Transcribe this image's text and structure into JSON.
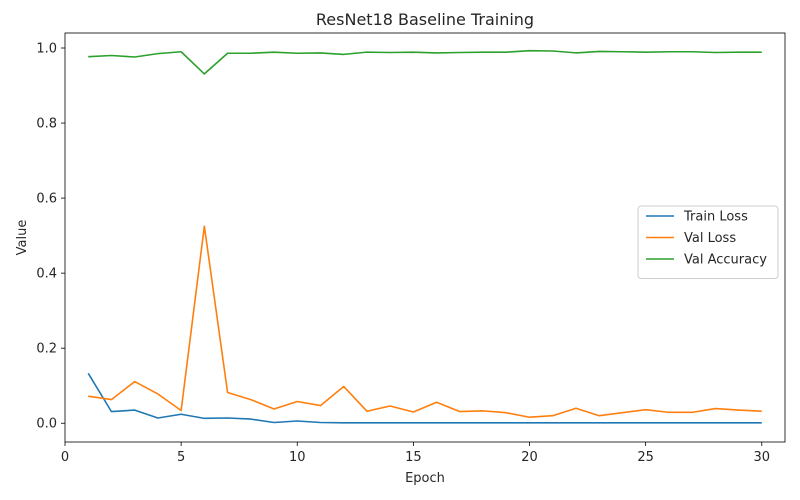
{
  "chart_data": {
    "type": "line",
    "title": "ResNet18 Baseline Training",
    "xlabel": "Epoch",
    "ylabel": "Value",
    "xlim": [
      0,
      31
    ],
    "ylim": [
      -0.05,
      1.04
    ],
    "xticks": [
      0,
      5,
      10,
      15,
      20,
      25,
      30
    ],
    "xtick_labels": [
      "0",
      "5",
      "10",
      "15",
      "20",
      "25",
      "30"
    ],
    "yticks": [
      0.0,
      0.2,
      0.4,
      0.6,
      0.8,
      1.0
    ],
    "ytick_labels": [
      "0.0",
      "0.2",
      "0.4",
      "0.6",
      "0.8",
      "1.0"
    ],
    "grid": false,
    "legend_position": "center-right",
    "x": [
      1,
      2,
      3,
      4,
      5,
      6,
      7,
      8,
      9,
      10,
      11,
      12,
      13,
      14,
      15,
      16,
      17,
      18,
      19,
      20,
      21,
      22,
      23,
      24,
      25,
      26,
      27,
      28,
      29,
      30
    ],
    "series": [
      {
        "name": "Train Loss",
        "color": "#1f77b4",
        "values": [
          0.133,
          0.031,
          0.035,
          0.014,
          0.024,
          0.013,
          0.014,
          0.011,
          0.002,
          0.006,
          0.002,
          0.001,
          0.001,
          0.001,
          0.001,
          0.001,
          0.001,
          0.001,
          0.001,
          0.001,
          0.001,
          0.001,
          0.001,
          0.001,
          0.001,
          0.001,
          0.001,
          0.001,
          0.001,
          0.001
        ]
      },
      {
        "name": "Val Loss",
        "color": "#ff7f0e",
        "values": [
          0.072,
          0.063,
          0.111,
          0.078,
          0.034,
          0.525,
          0.082,
          0.063,
          0.038,
          0.058,
          0.047,
          0.098,
          0.032,
          0.046,
          0.03,
          0.056,
          0.031,
          0.033,
          0.028,
          0.016,
          0.02,
          0.04,
          0.02,
          0.028,
          0.036,
          0.029,
          0.029,
          0.039,
          0.035,
          0.032
        ]
      },
      {
        "name": "Val Accuracy",
        "color": "#2ca02c",
        "values": [
          0.977,
          0.98,
          0.976,
          0.985,
          0.99,
          0.931,
          0.986,
          0.986,
          0.989,
          0.986,
          0.987,
          0.983,
          0.989,
          0.988,
          0.989,
          0.987,
          0.988,
          0.989,
          0.989,
          0.993,
          0.992,
          0.987,
          0.991,
          0.99,
          0.989,
          0.99,
          0.99,
          0.988,
          0.989,
          0.989
        ]
      }
    ]
  }
}
